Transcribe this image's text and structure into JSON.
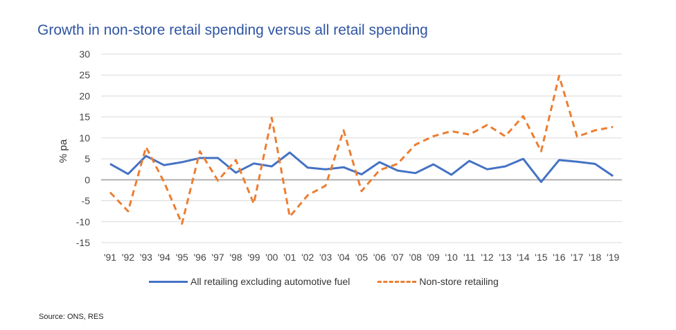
{
  "title": "Growth in non-store retail spending versus all retail spending",
  "source": "Source: ONS, RES",
  "colors": {
    "series1": "#4472C4",
    "series2": "#ED7D31",
    "grid": "#d9d9d9",
    "zero": "#b0b0b0"
  },
  "chart_data": {
    "type": "line",
    "title": "Growth in non-store retail spending versus all retail spending",
    "ylabel": "% pa",
    "xlabel": "",
    "ylim": [
      -15,
      30
    ],
    "yticks": [
      30,
      25,
      20,
      15,
      10,
      5,
      0,
      -5,
      -10,
      -15
    ],
    "grid": true,
    "legend_position": "bottom",
    "categories": [
      "'91",
      "'92",
      "'93",
      "'94",
      "'95",
      "'96",
      "'97",
      "'98",
      "'99",
      "'00",
      "'01",
      "'02",
      "'03",
      "'04",
      "'05",
      "'06",
      "'07",
      "'08",
      "'09",
      "'10",
      "'11",
      "'12",
      "'13",
      "'14",
      "'15",
      "'16",
      "'17",
      "'18",
      "'19"
    ],
    "series": [
      {
        "name": "All retailing excluding automotive fuel",
        "style": "solid",
        "values": [
          3.8,
          1.4,
          5.7,
          3.5,
          4.2,
          5.2,
          5.2,
          1.7,
          3.9,
          3.2,
          6.5,
          2.9,
          2.5,
          3.0,
          1.3,
          4.2,
          2.2,
          1.6,
          3.7,
          1.2,
          4.5,
          2.5,
          3.2,
          5.0,
          -0.5,
          4.7,
          4.3,
          3.8,
          0.9
        ]
      },
      {
        "name": "Non-store retailing",
        "style": "dashed",
        "values": [
          -3.0,
          -7.5,
          7.8,
          -0.5,
          -10.5,
          6.8,
          -0.2,
          4.7,
          -5.7,
          14.8,
          -8.8,
          -3.7,
          -1.4,
          11.8,
          -2.7,
          2.3,
          3.8,
          8.4,
          10.4,
          11.6,
          10.8,
          13.1,
          10.4,
          15.2,
          6.8,
          24.8,
          10.3,
          11.8,
          12.6
        ]
      }
    ]
  }
}
